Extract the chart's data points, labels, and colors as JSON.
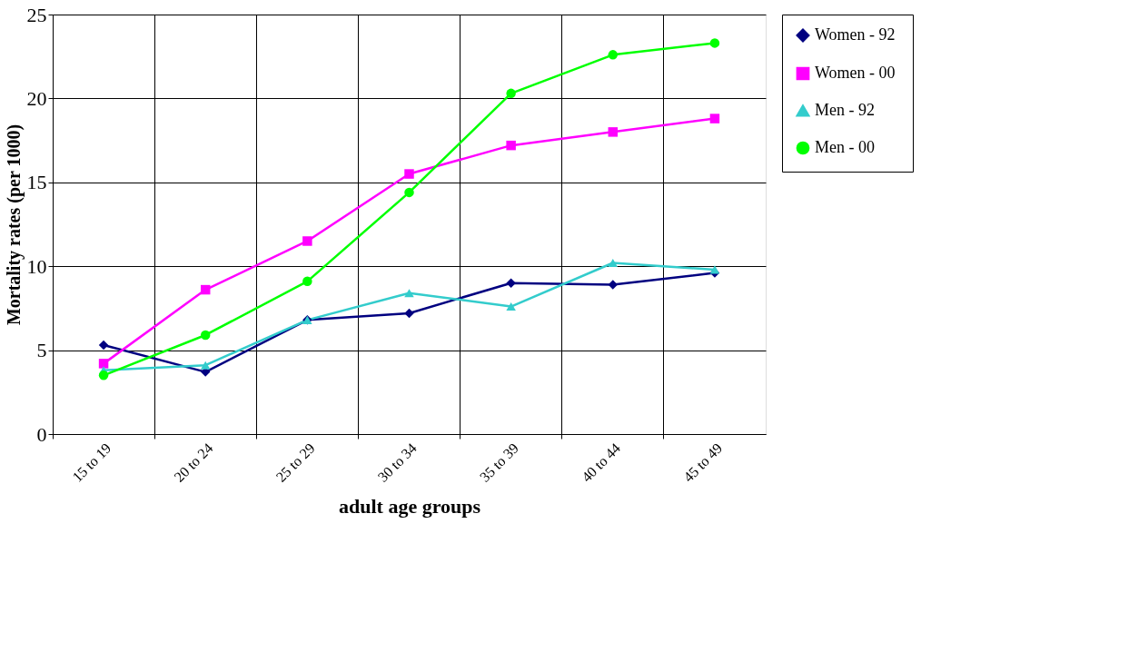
{
  "chart_data": {
    "type": "line",
    "categories": [
      "15 to 19",
      "20 to 24",
      "25 to 29",
      "30 to 34",
      "35 to 39",
      "40 to 44",
      "45 to 49"
    ],
    "xlabel": "adult age groups",
    "ylabel": "Mortality rates (per 1000)",
    "ylim": [
      0,
      25
    ],
    "yticks": [
      0,
      5,
      10,
      15,
      20,
      25
    ],
    "grid": true,
    "legend": "right",
    "series": [
      {
        "name": "Women  - 92",
        "color": "#000080",
        "marker": "diamond",
        "values": [
          5.3,
          3.7,
          6.8,
          7.2,
          9.0,
          8.9,
          9.6
        ]
      },
      {
        "name": "Women - 00",
        "color": "#ff00ff",
        "marker": "square",
        "values": [
          4.2,
          8.6,
          11.5,
          15.5,
          17.2,
          18.0,
          18.8
        ]
      },
      {
        "name": "Men - 92",
        "color": "#33cccc",
        "marker": "triangle",
        "values": [
          3.8,
          4.1,
          6.8,
          8.4,
          7.6,
          10.2,
          9.8
        ]
      },
      {
        "name": "Men - 00",
        "color": "#00ff00",
        "marker": "circle",
        "values": [
          3.5,
          5.9,
          9.1,
          14.4,
          20.3,
          22.6,
          23.3
        ]
      }
    ]
  }
}
